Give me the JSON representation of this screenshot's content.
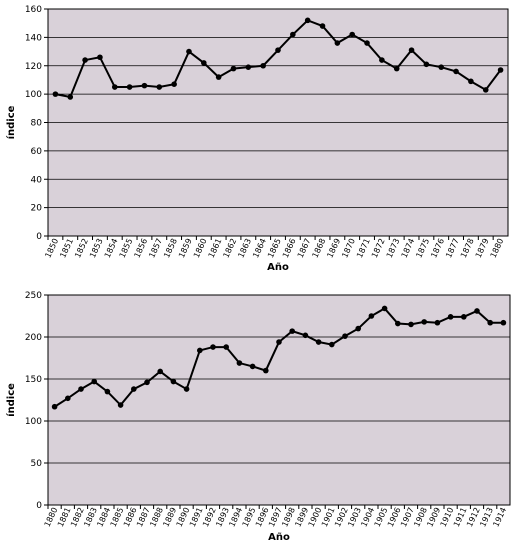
{
  "chart_data": [
    {
      "type": "line",
      "x_label": "Año",
      "y_label": "índice",
      "categories": [
        "1850",
        "1851",
        "1852",
        "1853",
        "1854",
        "1855",
        "1856",
        "1857",
        "1858",
        "1859",
        "1860",
        "1861",
        "1862",
        "1863",
        "1864",
        "1865",
        "1866",
        "1867",
        "1868",
        "1869",
        "1870",
        "1871",
        "1872",
        "1873",
        "1874",
        "1875",
        "1876",
        "1877",
        "1878",
        "1879",
        "1880"
      ],
      "series": [
        {
          "color": "#000000",
          "values": [
            100,
            98,
            124,
            126,
            105,
            105,
            106,
            105,
            107,
            130,
            122,
            112,
            118,
            119,
            120,
            131,
            142,
            152,
            148,
            136,
            142,
            136,
            124,
            118,
            131,
            121,
            119,
            116,
            109,
            103,
            117
          ]
        }
      ],
      "ylim": [
        0,
        160
      ],
      "yticks": [
        0,
        20,
        40,
        60,
        80,
        100,
        120,
        140,
        160
      ],
      "grid": true,
      "background": "#d9d1d9"
    },
    {
      "type": "line",
      "x_label": "Año",
      "y_label": "índice",
      "categories": [
        "1880",
        "1881",
        "1882",
        "1883",
        "1884",
        "1885",
        "1886",
        "1887",
        "1888",
        "1889",
        "1890",
        "1891",
        "1892",
        "1893",
        "1894",
        "1895",
        "1896",
        "1897",
        "1898",
        "1899",
        "1900",
        "1901",
        "1902",
        "1903",
        "1904",
        "1905",
        "1906",
        "1907",
        "1908",
        "1909",
        "1910",
        "1911",
        "1912",
        "1913",
        "1914"
      ],
      "series": [
        {
          "color": "#000000",
          "values": [
            117,
            127,
            138,
            147,
            135,
            119,
            138,
            146,
            159,
            147,
            138,
            184,
            188,
            188,
            169,
            165,
            160,
            194,
            207,
            202,
            194,
            191,
            201,
            210,
            225,
            234,
            216,
            215,
            218,
            217,
            224,
            224,
            231,
            217,
            217
          ]
        }
      ],
      "ylim": [
        0,
        250
      ],
      "yticks": [
        0,
        50,
        100,
        150,
        200,
        250
      ],
      "grid": true,
      "background": "#d9d1d9"
    }
  ]
}
